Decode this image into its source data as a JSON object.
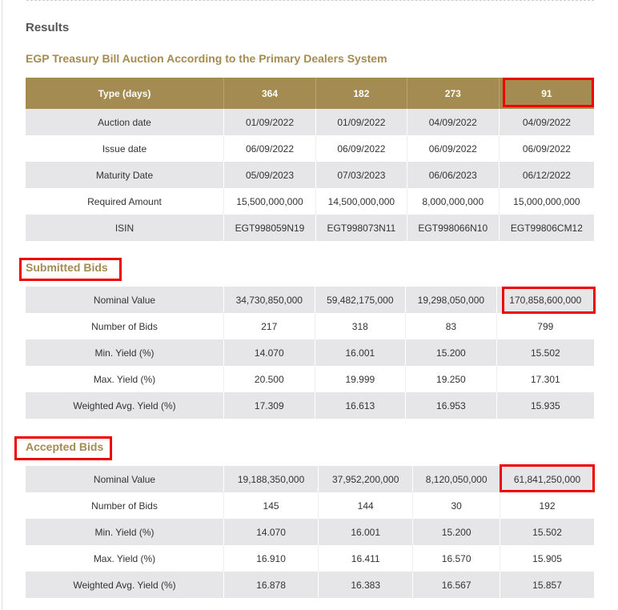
{
  "results_label": "Results",
  "subtitle": "EGP Treasury Bill Auction According to the Primary Dealers System",
  "main_table": {
    "header": [
      "Type (days)",
      "364",
      "182",
      "273",
      "91"
    ],
    "rows": [
      [
        "Auction date",
        "01/09/2022",
        "01/09/2022",
        "04/09/2022",
        "04/09/2022"
      ],
      [
        "Issue date",
        "06/09/2022",
        "06/09/2022",
        "06/09/2022",
        "06/09/2022"
      ],
      [
        "Maturity Date",
        "05/09/2023",
        "07/03/2023",
        "06/06/2023",
        "06/12/2022"
      ],
      [
        "Required Amount",
        "15,500,000,000",
        "14,500,000,000",
        "8,000,000,000",
        "15,000,000,000"
      ],
      [
        "ISIN",
        "EGT998059N19",
        "EGT998073N11",
        "EGT998066N10",
        "EGT99806CM12"
      ]
    ]
  },
  "submitted": {
    "title": "Submitted Bids",
    "rows": [
      [
        "Nominal Value",
        "34,730,850,000",
        "59,482,175,000",
        "19,298,050,000",
        "170,858,600,000"
      ],
      [
        "Number of Bids",
        "217",
        "318",
        "83",
        "799"
      ],
      [
        "Min. Yield (%)",
        "14.070",
        "16.001",
        "15.200",
        "15.502"
      ],
      [
        "Max. Yield (%)",
        "20.500",
        "19.999",
        "19.250",
        "17.301"
      ],
      [
        "Weighted Avg. Yield (%)",
        "17.309",
        "16.613",
        "16.953",
        "15.935"
      ]
    ]
  },
  "accepted": {
    "title": "Accepted Bids",
    "rows": [
      [
        "Nominal Value",
        "19,188,350,000",
        "37,952,200,000",
        "8,120,050,000",
        "61,841,250,000"
      ],
      [
        "Number of Bids",
        "145",
        "144",
        "30",
        "192"
      ],
      [
        "Min. Yield (%)",
        "14.070",
        "16.001",
        "15.200",
        "15.502"
      ],
      [
        "Max. Yield (%)",
        "16.910",
        "16.411",
        "16.570",
        "15.905"
      ],
      [
        "Weighted Avg. Yield (%)",
        "16.878",
        "16.383",
        "16.567",
        "15.857"
      ]
    ]
  },
  "colors": {
    "accent": "#a38b52",
    "highlight": "#ee0000",
    "row_alt": "#e6e6e8"
  }
}
